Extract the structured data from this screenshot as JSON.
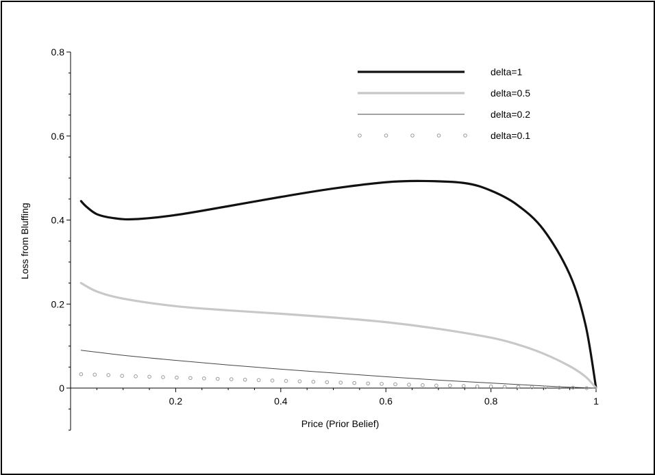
{
  "chart_data": {
    "type": "line",
    "title": "",
    "xlabel": "Price (Prior Belief)",
    "ylabel": "Loss from Bluffing",
    "xlim": [
      0,
      1
    ],
    "ylim": [
      -0.1,
      0.8
    ],
    "x_ticks": [
      0.2,
      0.4,
      0.6,
      0.8,
      1
    ],
    "x_tick_labels": [
      "0.2",
      "0.4",
      "0.6",
      "0.8",
      "1"
    ],
    "y_ticks": [
      0,
      0.2,
      0.4,
      0.6,
      0.8
    ],
    "y_tick_labels": [
      "0",
      "0.2",
      "0.4",
      "0.6",
      "0.8"
    ],
    "grid": false,
    "legend_position": "top-right",
    "colors": {
      "delta1": "#111111",
      "delta05": "#c8c8c8",
      "delta02": "#444444",
      "delta01": "#999999"
    },
    "series": [
      {
        "name": "delta=1",
        "style": "thick-dark",
        "x": [
          0.02,
          0.03,
          0.05,
          0.08,
          0.12,
          0.2,
          0.3,
          0.4,
          0.5,
          0.6,
          0.67,
          0.75,
          0.8,
          0.85,
          0.9,
          0.95,
          0.98,
          1.0
        ],
        "y": [
          0.445,
          0.432,
          0.414,
          0.405,
          0.402,
          0.412,
          0.433,
          0.455,
          0.475,
          0.49,
          0.493,
          0.488,
          0.47,
          0.436,
          0.377,
          0.27,
          0.15,
          0.0
        ]
      },
      {
        "name": "delta=0.5",
        "style": "thick-light",
        "x": [
          0.02,
          0.05,
          0.1,
          0.2,
          0.3,
          0.4,
          0.5,
          0.6,
          0.7,
          0.8,
          0.85,
          0.9,
          0.95,
          0.98,
          1.0
        ],
        "y": [
          0.25,
          0.23,
          0.213,
          0.195,
          0.185,
          0.177,
          0.168,
          0.157,
          0.141,
          0.12,
          0.104,
          0.082,
          0.052,
          0.027,
          0.0
        ]
      },
      {
        "name": "delta=0.2",
        "style": "thin",
        "x": [
          0.02,
          0.1,
          0.2,
          0.3,
          0.4,
          0.5,
          0.6,
          0.7,
          0.8,
          0.9,
          0.95,
          1.0
        ],
        "y": [
          0.09,
          0.078,
          0.066,
          0.055,
          0.045,
          0.036,
          0.027,
          0.019,
          0.012,
          0.005,
          0.002,
          0.0
        ]
      },
      {
        "name": "delta=0.1",
        "style": "circles",
        "x": [
          0.02,
          0.046,
          0.072,
          0.098,
          0.124,
          0.15,
          0.176,
          0.202,
          0.228,
          0.254,
          0.28,
          0.306,
          0.332,
          0.358,
          0.384,
          0.41,
          0.436,
          0.462,
          0.488,
          0.514,
          0.54,
          0.566,
          0.592,
          0.618,
          0.644,
          0.67,
          0.696,
          0.722,
          0.748,
          0.774,
          0.8,
          0.826,
          0.852,
          0.878,
          0.904,
          0.93,
          0.956,
          0.982
        ],
        "y": [
          0.033,
          0.032,
          0.031,
          0.029,
          0.028,
          0.027,
          0.026,
          0.025,
          0.024,
          0.023,
          0.022,
          0.021,
          0.02,
          0.019,
          0.018,
          0.017,
          0.016,
          0.015,
          0.014,
          0.013,
          0.012,
          0.011,
          0.01,
          0.009,
          0.008,
          0.007,
          0.006,
          0.006,
          0.005,
          0.004,
          0.004,
          0.003,
          0.003,
          0.002,
          0.002,
          0.001,
          0.001,
          0.0
        ]
      }
    ]
  }
}
